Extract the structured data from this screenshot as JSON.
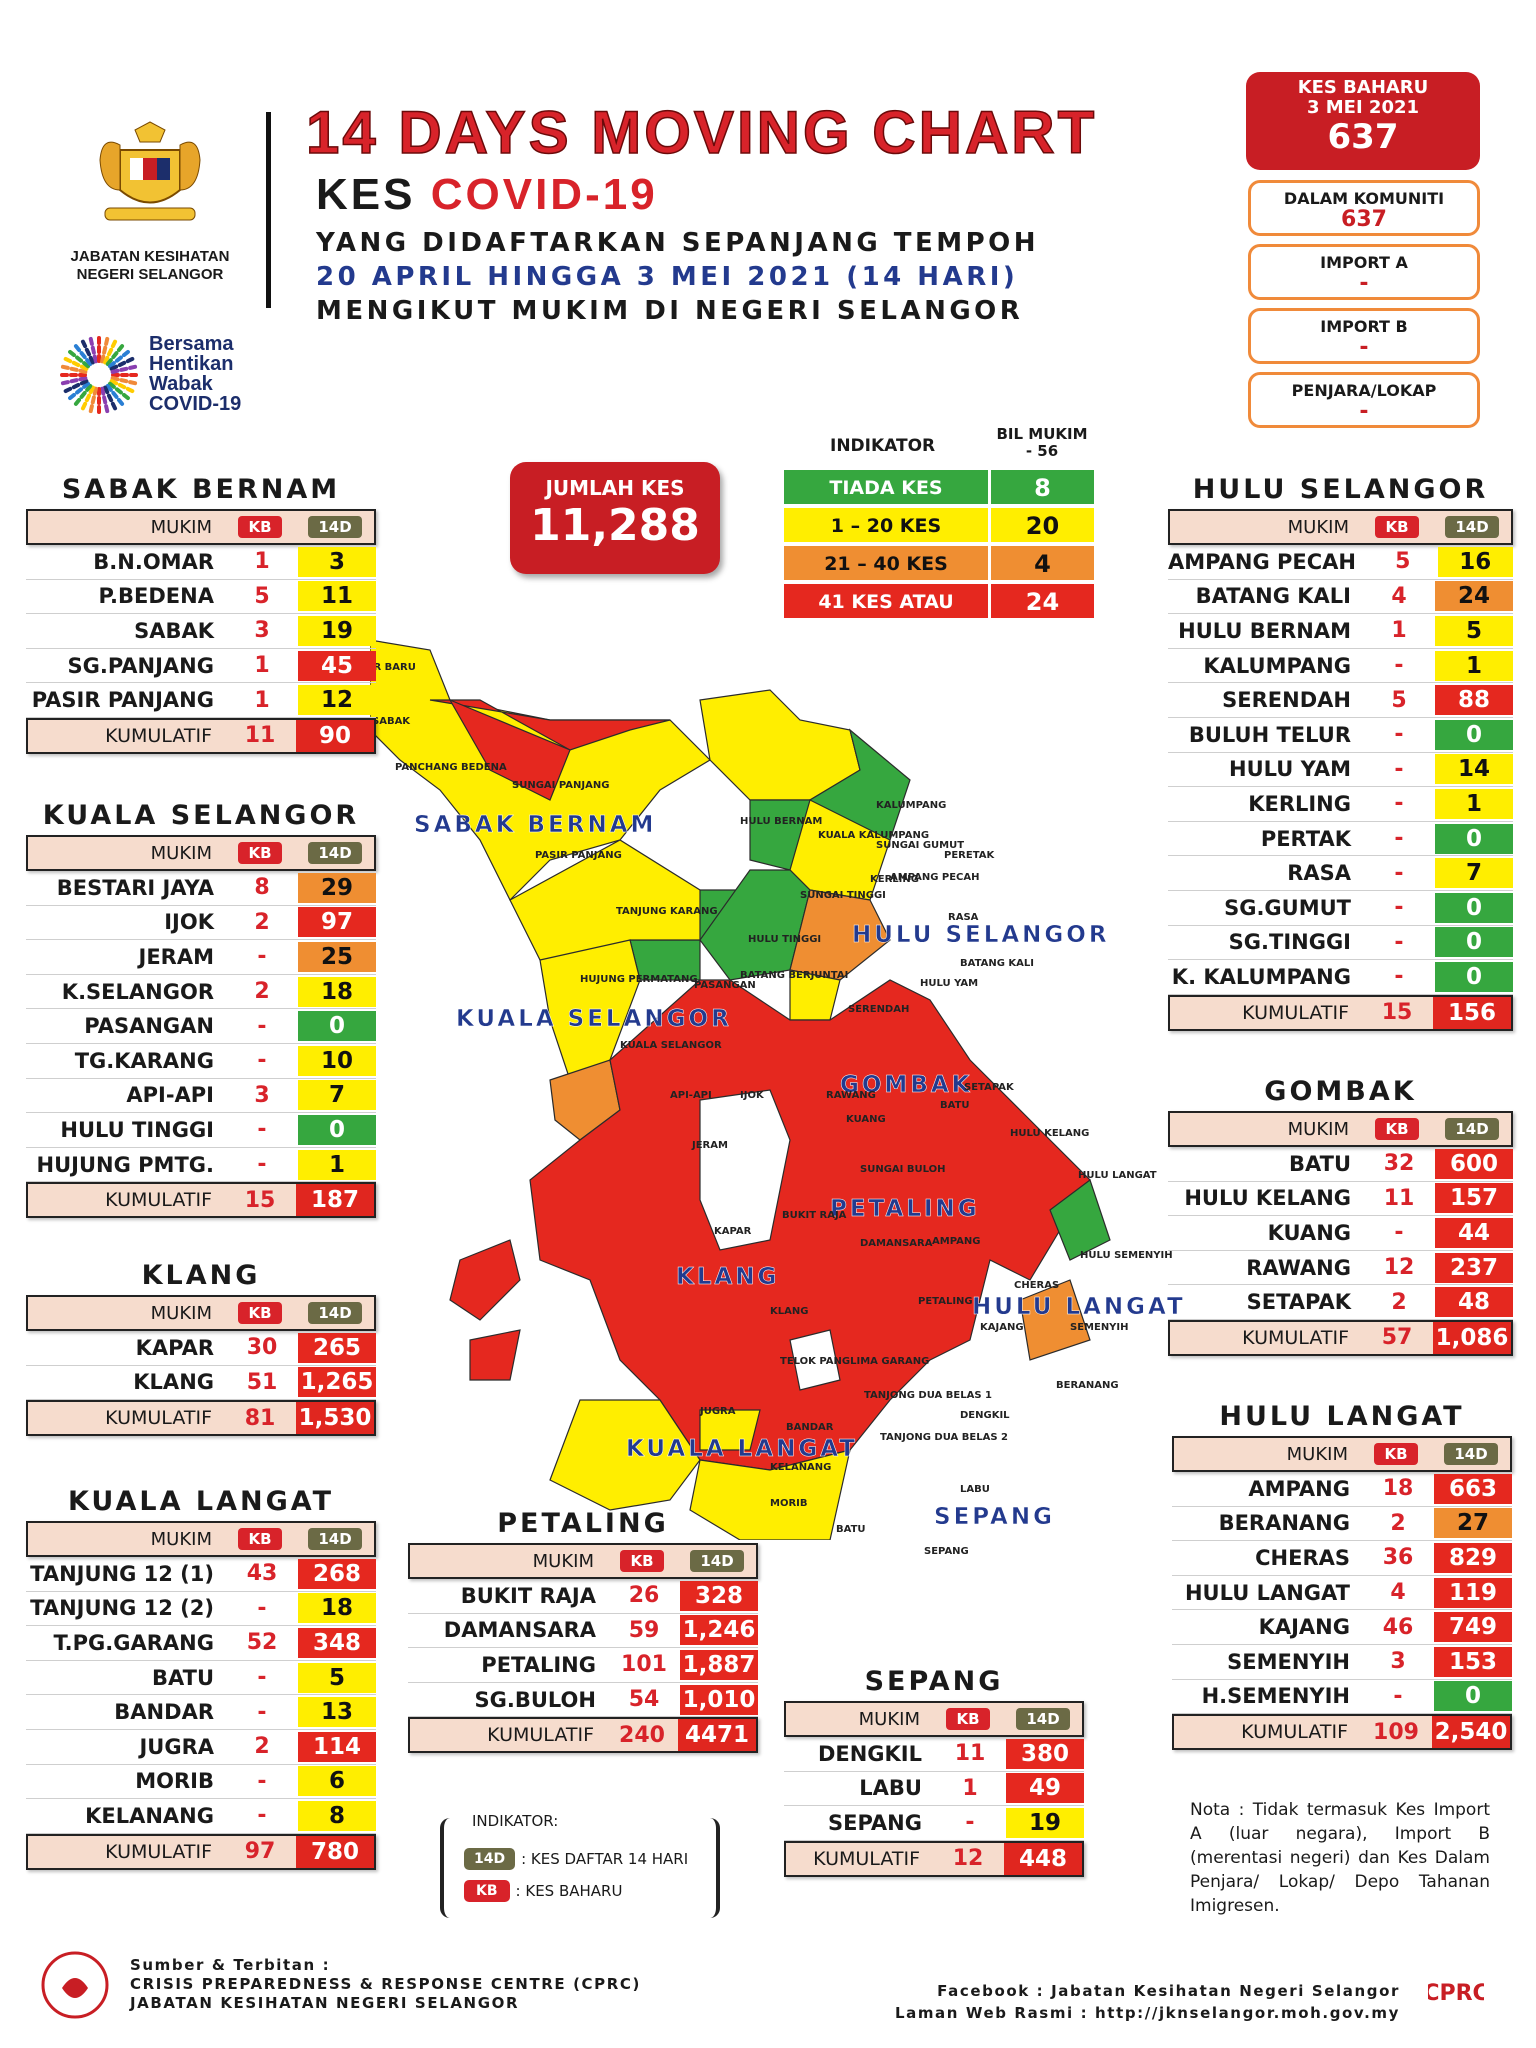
{
  "header": {
    "department": "JABATAN KESIHATAN NEGERI SELANGOR",
    "campaign": [
      "Bersama",
      "Hentikan",
      "Wabak",
      "COVID-19"
    ],
    "title": "14 DAYS MOVING CHART",
    "subtitle_prefix": "KES",
    "subtitle_red": "COVID-19",
    "line1": "YANG DIDAFTARKAN SEPANJANG TEMPOH",
    "line2": "20 APRIL HINGGA 3 MEI 2021 (14 HARI)",
    "line3": "MENGIKUT MUKIM DI NEGERI SELANGOR"
  },
  "new_cases": {
    "label": "KES BAHARU",
    "date": "3 MEI 2021",
    "value": "637",
    "boxes": [
      {
        "label": "DALAM KOMUNITI",
        "value": "637"
      },
      {
        "label": "IMPORT A",
        "value": "-"
      },
      {
        "label": "IMPORT B",
        "value": "-"
      },
      {
        "label": "PENJARA/LOKAP",
        "value": "-"
      }
    ]
  },
  "total": {
    "label": "JUMLAH KES",
    "value": "11,288"
  },
  "indicator": {
    "head": "INDIKATOR",
    "count_head": "BIL MUKIM",
    "count_sub": "- 56",
    "rows": [
      {
        "label": "TIADA KES",
        "value": "8",
        "color": "#36a73f"
      },
      {
        "label": "1 – 20 KES",
        "value": "20",
        "color": "#ffee00"
      },
      {
        "label": "21 – 40 KES",
        "value": "4",
        "color": "#ef8e32"
      },
      {
        "label": "41 KES ATAU LEBIH",
        "value": "24",
        "color": "#e5281f"
      }
    ]
  },
  "table_labels": {
    "mukim": "MUKIM",
    "kb": "KB",
    "d14": "14D",
    "kumulatif": "KUMULATIF"
  },
  "districts": {
    "sabak_bernam": {
      "name": "SABAK BERNAM",
      "rows": [
        {
          "mukim": "B.N.OMAR",
          "kb": "1",
          "d14": "3",
          "c": "yellow"
        },
        {
          "mukim": "P.BEDENA",
          "kb": "5",
          "d14": "11",
          "c": "yellow"
        },
        {
          "mukim": "SABAK",
          "kb": "3",
          "d14": "19",
          "c": "yellow"
        },
        {
          "mukim": "SG.PANJANG",
          "kb": "1",
          "d14": "45",
          "c": "red"
        },
        {
          "mukim": "PASIR PANJANG",
          "kb": "1",
          "d14": "12",
          "c": "yellow"
        }
      ],
      "kum_kb": "11",
      "kum_14": "90"
    },
    "kuala_selangor": {
      "name": "KUALA SELANGOR",
      "rows": [
        {
          "mukim": "BESTARI JAYA",
          "kb": "8",
          "d14": "29",
          "c": "orange"
        },
        {
          "mukim": "IJOK",
          "kb": "2",
          "d14": "97",
          "c": "red"
        },
        {
          "mukim": "JERAM",
          "kb": "-",
          "d14": "25",
          "c": "orange"
        },
        {
          "mukim": "K.SELANGOR",
          "kb": "2",
          "d14": "18",
          "c": "yellow"
        },
        {
          "mukim": "PASANGAN",
          "kb": "-",
          "d14": "0",
          "c": "green"
        },
        {
          "mukim": "TG.KARANG",
          "kb": "-",
          "d14": "10",
          "c": "yellow"
        },
        {
          "mukim": "API-API",
          "kb": "3",
          "d14": "7",
          "c": "yellow"
        },
        {
          "mukim": "HULU TINGGI",
          "kb": "-",
          "d14": "0",
          "c": "green"
        },
        {
          "mukim": "HUJUNG PMTG.",
          "kb": "-",
          "d14": "1",
          "c": "yellow"
        }
      ],
      "kum_kb": "15",
      "kum_14": "187"
    },
    "klang": {
      "name": "KLANG",
      "rows": [
        {
          "mukim": "KAPAR",
          "kb": "30",
          "d14": "265",
          "c": "red"
        },
        {
          "mukim": "KLANG",
          "kb": "51",
          "d14": "1,265",
          "c": "red"
        }
      ],
      "kum_kb": "81",
      "kum_14": "1,530"
    },
    "kuala_langat": {
      "name": "KUALA LANGAT",
      "rows": [
        {
          "mukim": "TANJUNG 12 (1)",
          "kb": "43",
          "d14": "268",
          "c": "red"
        },
        {
          "mukim": "TANJUNG 12 (2)",
          "kb": "-",
          "d14": "18",
          "c": "yellow"
        },
        {
          "mukim": "T.PG.GARANG",
          "kb": "52",
          "d14": "348",
          "c": "red"
        },
        {
          "mukim": "BATU",
          "kb": "-",
          "d14": "5",
          "c": "yellow"
        },
        {
          "mukim": "BANDAR",
          "kb": "-",
          "d14": "13",
          "c": "yellow"
        },
        {
          "mukim": "JUGRA",
          "kb": "2",
          "d14": "114",
          "c": "red"
        },
        {
          "mukim": "MORIB",
          "kb": "-",
          "d14": "6",
          "c": "yellow"
        },
        {
          "mukim": "KELANANG",
          "kb": "-",
          "d14": "8",
          "c": "yellow"
        }
      ],
      "kum_kb": "97",
      "kum_14": "780"
    },
    "petaling": {
      "name": "PETALING",
      "rows": [
        {
          "mukim": "BUKIT RAJA",
          "kb": "26",
          "d14": "328",
          "c": "red"
        },
        {
          "mukim": "DAMANSARA",
          "kb": "59",
          "d14": "1,246",
          "c": "red"
        },
        {
          "mukim": "PETALING",
          "kb": "101",
          "d14": "1,887",
          "c": "red"
        },
        {
          "mukim": "SG.BULOH",
          "kb": "54",
          "d14": "1,010",
          "c": "red"
        }
      ],
      "kum_kb": "240",
      "kum_14": "4471"
    },
    "sepang": {
      "name": "SEPANG",
      "rows": [
        {
          "mukim": "DENGKIL",
          "kb": "11",
          "d14": "380",
          "c": "red"
        },
        {
          "mukim": "LABU",
          "kb": "1",
          "d14": "49",
          "c": "red"
        },
        {
          "mukim": "SEPANG",
          "kb": "-",
          "d14": "19",
          "c": "yellow"
        }
      ],
      "kum_kb": "12",
      "kum_14": "448"
    },
    "hulu_selangor": {
      "name": "HULU SELANGOR",
      "rows": [
        {
          "mukim": "AMPANG PECAH",
          "kb": "5",
          "d14": "16",
          "c": "yellow"
        },
        {
          "mukim": "BATANG KALI",
          "kb": "4",
          "d14": "24",
          "c": "orange"
        },
        {
          "mukim": "HULU BERNAM",
          "kb": "1",
          "d14": "5",
          "c": "yellow"
        },
        {
          "mukim": "KALUMPANG",
          "kb": "-",
          "d14": "1",
          "c": "yellow"
        },
        {
          "mukim": "SERENDAH",
          "kb": "5",
          "d14": "88",
          "c": "red"
        },
        {
          "mukim": "BULUH TELUR",
          "kb": "-",
          "d14": "0",
          "c": "green"
        },
        {
          "mukim": "HULU YAM",
          "kb": "-",
          "d14": "14",
          "c": "yellow"
        },
        {
          "mukim": "KERLING",
          "kb": "-",
          "d14": "1",
          "c": "yellow"
        },
        {
          "mukim": "PERTAK",
          "kb": "-",
          "d14": "0",
          "c": "green"
        },
        {
          "mukim": "RASA",
          "kb": "-",
          "d14": "7",
          "c": "yellow"
        },
        {
          "mukim": "SG.GUMUT",
          "kb": "-",
          "d14": "0",
          "c": "green"
        },
        {
          "mukim": "SG.TINGGI",
          "kb": "-",
          "d14": "0",
          "c": "green"
        },
        {
          "mukim": "K. KALUMPANG",
          "kb": "-",
          "d14": "0",
          "c": "green"
        }
      ],
      "kum_kb": "15",
      "kum_14": "156"
    },
    "gombak": {
      "name": "GOMBAK",
      "rows": [
        {
          "mukim": "BATU",
          "kb": "32",
          "d14": "600",
          "c": "red"
        },
        {
          "mukim": "HULU KELANG",
          "kb": "11",
          "d14": "157",
          "c": "red"
        },
        {
          "mukim": "KUANG",
          "kb": "-",
          "d14": "44",
          "c": "red"
        },
        {
          "mukim": "RAWANG",
          "kb": "12",
          "d14": "237",
          "c": "red"
        },
        {
          "mukim": "SETAPAK",
          "kb": "2",
          "d14": "48",
          "c": "red"
        }
      ],
      "kum_kb": "57",
      "kum_14": "1,086"
    },
    "hulu_langat": {
      "name": "HULU LANGAT",
      "rows": [
        {
          "mukim": "AMPANG",
          "kb": "18",
          "d14": "663",
          "c": "red"
        },
        {
          "mukim": "BERANANG",
          "kb": "2",
          "d14": "27",
          "c": "orange"
        },
        {
          "mukim": "CHERAS",
          "kb": "36",
          "d14": "829",
          "c": "red"
        },
        {
          "mukim": "HULU LANGAT",
          "kb": "4",
          "d14": "119",
          "c": "red"
        },
        {
          "mukim": "KAJANG",
          "kb": "46",
          "d14": "749",
          "c": "red"
        },
        {
          "mukim": "SEMENYIH",
          "kb": "3",
          "d14": "153",
          "c": "red"
        },
        {
          "mukim": "H.SEMENYIH",
          "kb": "-",
          "d14": "0",
          "c": "green"
        }
      ],
      "kum_kb": "109",
      "kum_14": "2,540"
    }
  },
  "map": {
    "regions": [
      "SABAK BERNAM",
      "HULU SELANGOR",
      "KUALA SELANGOR",
      "GOMBAK",
      "PETALING",
      "KLANG",
      "HULU LANGAT",
      "KUALA LANGAT",
      "SEPANG"
    ],
    "labels": [
      "AIR BARU",
      "SABAK",
      "PANCHANG BEDENA",
      "SUNGAI PANJANG",
      "PASIR PANJANG",
      "HULU BERNAM",
      "KALUMPANG",
      "KUALA KALUMPANG",
      "SUNGAI GUMUT",
      "PERETAK",
      "SUNGAI TINGGI",
      "KERLING",
      "AMPANG PECAH",
      "RASA",
      "TANJUNG KARANG",
      "HULU TINGGI",
      "HUJUNG PERMATANG",
      "PASANGAN",
      "BATANG BERJUNTAI",
      "HULU YAM",
      "BATANG KALI",
      "KUALA SELANGOR",
      "SERENDAH",
      "API-API",
      "IJOK",
      "RAWANG",
      "SETAPAK",
      "BATU",
      "KUANG",
      "HULU KELANG",
      "JERAM",
      "SUNGAI BULOH",
      "HULU LANGAT",
      "KAPAR",
      "BUKIT RAJA",
      "DAMANSARA",
      "AMPANG",
      "HULU SEMENYIH",
      "PETALING",
      "CHERAS",
      "KAJANG",
      "SEMENYIH",
      "KLANG",
      "TELOK PANGLIMA GARANG",
      "TANJONG DUA BELAS 1",
      "BERANANG",
      "JUGRA",
      "BANDAR",
      "TANJONG DUA BELAS 2",
      "DENGKIL",
      "KELANANG",
      "LABU",
      "MORIB",
      "BATU",
      "SEPANG"
    ]
  },
  "legend": {
    "head": "INDIKATOR:",
    "d14_badge": "14D",
    "d14_text": ": KES DAFTAR 14 HARI",
    "kb_badge": "KB",
    "kb_text": ": KES BAHARU"
  },
  "nota": "Nota : Tidak termasuk Kes Import A (luar negara), Import B (merentasi negeri) dan Kes Dalam Penjara/ Lokap/ Depo Tahanan Imigresen.",
  "footer": {
    "source_label": "Sumber & Terbitan :",
    "source_1": "CRISIS PREPAREDNESS & RESPONSE CENTRE (CPRC)",
    "source_2": "JABATAN KESIHATAN NEGERI SELANGOR",
    "facebook": "Facebook : Jabatan Kesihatan Negeri Selangor",
    "web": "Laman Web Rasmi : http://jknselangor.moh.gov.my",
    "cprc_logo": "CPRC"
  },
  "colors": {
    "red": "#e5281f",
    "yellow": "#ffee00",
    "orange": "#ef8e32",
    "green": "#36a73f",
    "brand_red": "#c81e24",
    "blue": "#233a8e"
  }
}
